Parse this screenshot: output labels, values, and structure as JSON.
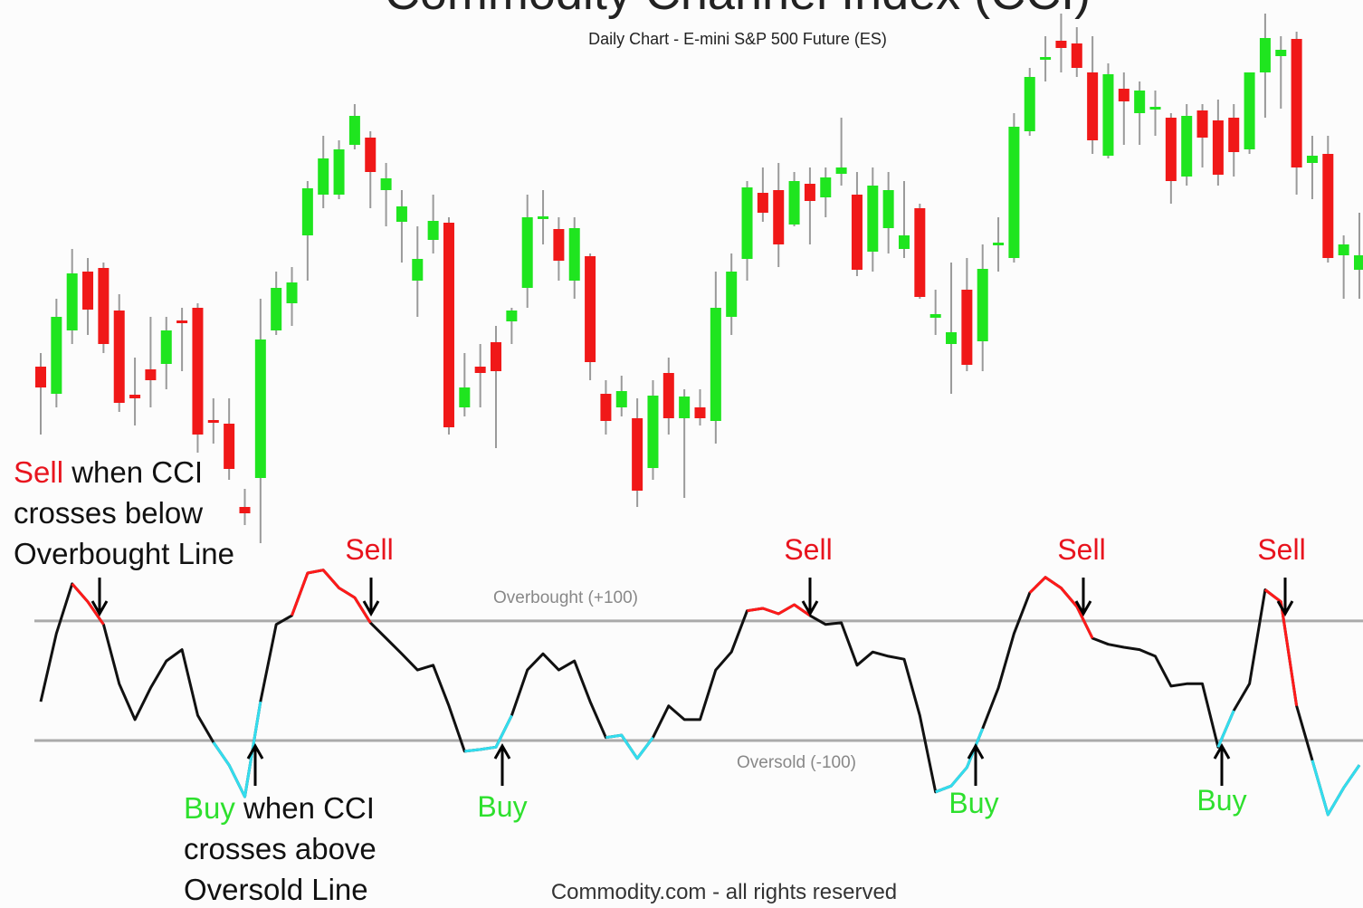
{
  "chart_data": {
    "type": "candlestick",
    "title": "Commodity Channel Index (CCI)",
    "subtitle": "Daily Chart - E-mini S&P 500 Future (ES)",
    "footer": "Commodity.com - all rights reserved",
    "ylim": [
      0,
      600
    ],
    "up_color": "#1fe51f",
    "down_color": "#f01818",
    "wick_color": "#9a9a9a",
    "open": [
      195,
      165,
      235,
      300,
      304,
      257,
      164,
      192,
      198,
      246,
      260,
      136,
      132,
      40,
      72,
      235,
      265,
      340,
      385,
      385,
      440,
      448,
      390,
      355,
      290,
      335,
      354,
      150,
      195,
      222,
      245,
      282,
      358,
      347,
      290,
      317,
      165,
      150,
      138,
      83,
      188,
      138,
      150,
      135,
      250,
      314,
      387,
      390,
      352,
      397,
      382,
      408,
      385,
      322,
      348,
      325,
      370,
      249,
      220,
      280,
      223,
      329,
      315,
      455,
      534,
      555,
      552,
      520,
      428,
      502,
      475,
      479,
      470,
      405,
      478,
      467,
      470,
      435,
      520,
      538,
      557,
      420,
      430,
      318,
      302
    ],
    "high": [
      210,
      270,
      325,
      315,
      310,
      275,
      205,
      250,
      250,
      260,
      265,
      160,
      160,
      60,
      270,
      300,
      305,
      400,
      450,
      445,
      485,
      455,
      420,
      390,
      350,
      385,
      360,
      210,
      220,
      240,
      260,
      385,
      390,
      360,
      360,
      320,
      180,
      185,
      160,
      180,
      205,
      170,
      170,
      300,
      320,
      400,
      415,
      420,
      410,
      415,
      415,
      470,
      410,
      415,
      410,
      400,
      375,
      280,
      310,
      315,
      330,
      360,
      475,
      525,
      560,
      585,
      570,
      560,
      530,
      520,
      510,
      500,
      475,
      485,
      485,
      490,
      485,
      520,
      585,
      560,
      565,
      450,
      450,
      340,
      365
    ],
    "low": [
      120,
      150,
      220,
      230,
      210,
      145,
      130,
      150,
      170,
      190,
      100,
      110,
      70,
      20,
      0,
      230,
      240,
      290,
      370,
      380,
      435,
      370,
      350,
      310,
      250,
      320,
      120,
      140,
      150,
      105,
      220,
      260,
      330,
      290,
      270,
      180,
      120,
      140,
      40,
      70,
      120,
      50,
      130,
      110,
      230,
      290,
      355,
      305,
      350,
      330,
      360,
      395,
      295,
      300,
      320,
      315,
      270,
      230,
      165,
      190,
      190,
      300,
      310,
      450,
      510,
      520,
      515,
      430,
      425,
      440,
      440,
      450,
      375,
      395,
      415,
      395,
      405,
      430,
      470,
      480,
      385,
      380,
      310,
      270,
      270
    ],
    "close": [
      172,
      250,
      298,
      258,
      220,
      155,
      160,
      180,
      235,
      243,
      120,
      133,
      82,
      33,
      225,
      282,
      288,
      392,
      425,
      435,
      472,
      410,
      403,
      372,
      314,
      356,
      128,
      172,
      188,
      190,
      257,
      360,
      361,
      312,
      348,
      200,
      135,
      168,
      58,
      163,
      138,
      162,
      138,
      260,
      300,
      393,
      365,
      330,
      400,
      378,
      404,
      415,
      302,
      395,
      390,
      340,
      272,
      253,
      233,
      197,
      303,
      332,
      460,
      515,
      537,
      547,
      525,
      445,
      518,
      488,
      500,
      482,
      400,
      472,
      448,
      407,
      432,
      520,
      558,
      545,
      415,
      428,
      315,
      330,
      318
    ],
    "indicator": {
      "type": "line",
      "ylim": [
        -380,
        230
      ],
      "color": "#111111",
      "values": [
        -35,
        79,
        162,
        132,
        94,
        -5,
        -65,
        -12,
        33,
        52,
        -58,
        -103,
        -141,
        -194,
        -35,
        94,
        109,
        180,
        185,
        155,
        139,
        97,
        71,
        45,
        18,
        26,
        -42,
        -118,
        -115,
        -111,
        -58,
        18,
        45,
        18,
        33,
        -35,
        -95,
        -91,
        -130,
        -95,
        -42,
        -65,
        -65,
        18,
        48,
        117,
        121,
        112,
        127,
        109,
        94,
        97,
        26,
        48,
        41,
        36,
        -58,
        -186,
        -176,
        -145,
        -80,
        -12,
        79,
        147,
        173,
        155,
        124,
        71,
        61,
        56,
        52,
        41,
        -9,
        -5,
        -5,
        -111,
        -50,
        -5,
        152,
        132,
        -42,
        -133,
        -224,
        -179,
        -141
      ],
      "levels": [
        {
          "value": 100,
          "label": "Overbought (+100)"
        },
        {
          "value": -100,
          "label": "Oversold (-100)"
        }
      ],
      "level_color": "#aaaaaa",
      "highlights": [
        {
          "color": "#ff1a1a",
          "values": [
            null,
            null,
            162,
            132,
            94,
            null,
            null,
            null,
            null,
            null,
            null,
            null,
            null,
            null,
            null,
            null,
            109,
            180,
            185,
            155,
            139,
            97,
            null,
            null,
            null,
            null,
            null,
            null,
            null,
            null,
            null,
            null,
            null,
            null,
            null,
            null,
            null,
            null,
            null,
            null,
            null,
            null,
            null,
            null,
            null,
            117,
            121,
            112,
            127,
            109,
            null,
            null,
            null,
            null,
            null,
            null,
            null,
            null,
            null,
            null,
            null,
            null,
            null,
            147,
            173,
            155,
            124,
            71,
            null,
            null,
            null,
            null,
            null,
            null,
            null,
            null,
            null,
            null,
            152,
            132,
            -42,
            null,
            null,
            null,
            null
          ]
        },
        {
          "color": "#33ddee",
          "values": [
            null,
            null,
            null,
            null,
            null,
            null,
            null,
            null,
            null,
            null,
            null,
            -103,
            -141,
            -194,
            -35,
            null,
            null,
            null,
            null,
            null,
            null,
            null,
            null,
            null,
            null,
            null,
            null,
            -118,
            -115,
            -111,
            -58,
            null,
            null,
            null,
            null,
            null,
            -95,
            -91,
            -130,
            -95,
            null,
            null,
            null,
            null,
            null,
            null,
            null,
            null,
            null,
            null,
            null,
            null,
            null,
            null,
            null,
            null,
            null,
            -186,
            -176,
            -145,
            -80,
            null,
            null,
            null,
            null,
            null,
            null,
            null,
            null,
            null,
            null,
            null,
            null,
            null,
            null,
            -111,
            -50,
            null,
            null,
            null,
            null,
            -133,
            -224,
            -179,
            -141
          ]
        }
      ]
    },
    "sell_color": "#e8141e",
    "buy_color": "#2ee02e",
    "sell_note": {
      "signal": "Sell",
      "lines": [
        " when CCI",
        "crosses below",
        "Overbought Line"
      ]
    },
    "buy_note": {
      "signal": "Buy",
      "lines": [
        " when CCI",
        "crosses above",
        "Oversold Line"
      ]
    },
    "sell_labels": [
      "Sell",
      "Sell",
      "Sell",
      "Sell"
    ],
    "buy_labels": [
      "Buy",
      "Buy",
      "Buy"
    ]
  }
}
